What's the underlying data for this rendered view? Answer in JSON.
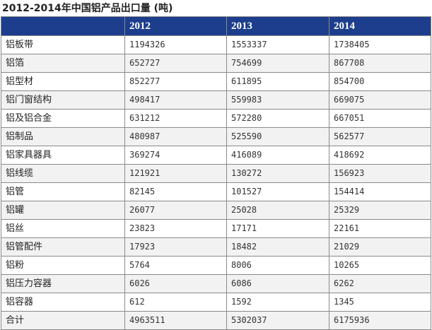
{
  "page": {
    "title": "2012-2014年中国铝产品出口量 (吨)"
  },
  "colors": {
    "header_bg": "#1c3e8c",
    "header_text": "#ffffff",
    "row_alt": "#f2f2f2",
    "border": "#8a8a8a"
  },
  "chart_data": {
    "type": "table",
    "title": "2012-2014年中国铝产品出口量 (吨)",
    "columns": [
      "",
      "2012",
      "2013",
      "2014"
    ],
    "rows": [
      {
        "label": "铝板带",
        "values": [
          "1194326",
          "1553337",
          "1738405"
        ]
      },
      {
        "label": "铝箔",
        "values": [
          "652727",
          "754699",
          "867708"
        ]
      },
      {
        "label": "铝型材",
        "values": [
          "852277",
          "611895",
          "854700"
        ]
      },
      {
        "label": "铝门窗结构",
        "values": [
          "498417",
          "559983",
          "669075"
        ]
      },
      {
        "label": "铝及铝合金",
        "values": [
          "631212",
          "572280",
          "667051"
        ]
      },
      {
        "label": "铝制品",
        "values": [
          "480987",
          "525590",
          "562577"
        ]
      },
      {
        "label": "铝家具器具",
        "values": [
          "369274",
          "416089",
          "418692"
        ]
      },
      {
        "label": "铝线缆",
        "values": [
          "121921",
          "130272",
          "156923"
        ]
      },
      {
        "label": "铝管",
        "values": [
          "82145",
          "101527",
          "154414"
        ]
      },
      {
        "label": "铝罐",
        "values": [
          "26077",
          "25028",
          "25329"
        ]
      },
      {
        "label": "铝丝",
        "values": [
          "23823",
          "17171",
          "22161"
        ]
      },
      {
        "label": "铝管配件",
        "values": [
          "17923",
          "18482",
          "21029"
        ]
      },
      {
        "label": "铝粉",
        "values": [
          "5764",
          "8006",
          "10265"
        ]
      },
      {
        "label": "铝压力容器",
        "values": [
          "6026",
          "6086",
          "6262"
        ]
      },
      {
        "label": "铝容器",
        "values": [
          "612",
          "1592",
          "1345"
        ]
      },
      {
        "label": "合计",
        "values": [
          "4963511",
          "5302037",
          "6175936"
        ]
      }
    ]
  }
}
